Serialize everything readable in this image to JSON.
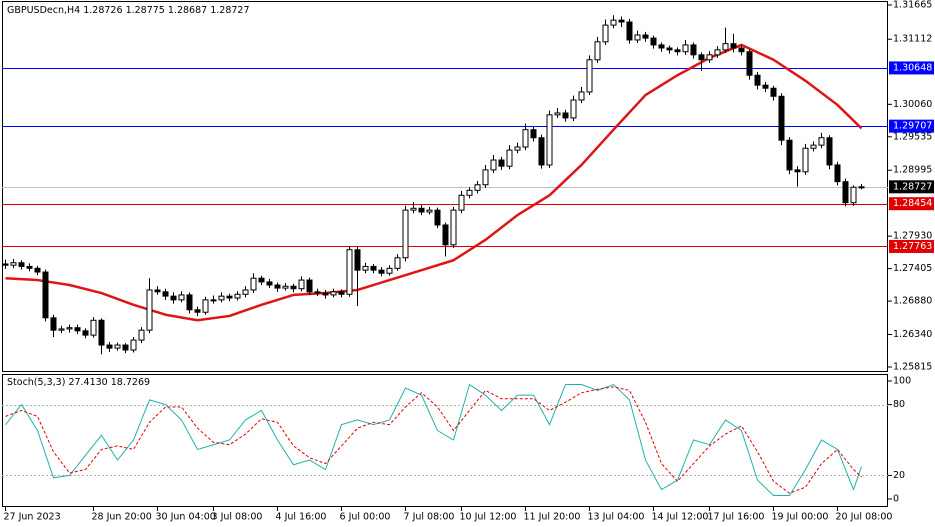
{
  "chart_data": [
    {
      "type": "candlestick",
      "title": "GBPUSDecn,H4",
      "categories": [
        "27 Jun 2023",
        null,
        null,
        null,
        null,
        null,
        null,
        null,
        null,
        null,
        null,
        "28 Jun 20:00",
        null,
        null,
        null,
        null,
        null,
        null,
        null,
        "30 Jun 04:00",
        null,
        null,
        null,
        null,
        null,
        null,
        "3 Jul 08:00",
        null,
        null,
        null,
        null,
        null,
        null,
        null,
        "4 Jul 16:00",
        null,
        null,
        null,
        null,
        null,
        null,
        null,
        "6 Jul 00:00",
        null,
        null,
        null,
        null,
        null,
        null,
        null,
        "7 Jul 08:00",
        null,
        null,
        null,
        null,
        null,
        null,
        "10 Jul 12:00",
        null,
        null,
        null,
        null,
        null,
        null,
        null,
        "11 Jul 20:00",
        null,
        null,
        null,
        null,
        null,
        null,
        null,
        "13 Jul 04:00",
        null,
        null,
        null,
        null,
        null,
        null,
        null,
        "14 Jul 12:00",
        null,
        null,
        null,
        null,
        null,
        null,
        "17 Jul 16:00",
        null,
        null,
        null,
        null,
        null,
        null,
        null,
        "19 Jul 00:00",
        null,
        null,
        null,
        null,
        null,
        null,
        null,
        "20 Jul 08:00",
        null,
        null,
        null
      ],
      "open": [
        1.2748,
        1.2746,
        1.275,
        1.2744,
        1.2741,
        1.2735,
        1.2661,
        1.2641,
        1.2643,
        1.2645,
        1.264,
        1.2633,
        1.2657,
        1.2617,
        1.2612,
        1.2617,
        1.2609,
        1.2625,
        1.2641,
        1.2706,
        1.2703,
        1.2696,
        1.269,
        1.2698,
        1.2674,
        1.267,
        1.269,
        1.269,
        1.2696,
        1.2693,
        1.2699,
        1.2706,
        1.2725,
        1.2719,
        1.2714,
        1.2709,
        1.2712,
        1.2708,
        1.2722,
        1.2703,
        1.2701,
        1.2698,
        1.2703,
        1.2699,
        1.2771,
        1.2738,
        1.2744,
        1.2738,
        1.2733,
        1.2741,
        1.2758,
        1.2835,
        1.2838,
        1.2832,
        1.2835,
        1.2811,
        1.2779,
        1.2835,
        1.2859,
        1.2867,
        1.2876,
        1.29,
        1.2916,
        1.2906,
        1.2932,
        1.2937,
        1.2965,
        1.2952,
        1.2908,
        1.2989,
        1.2992,
        1.2984,
        1.3013,
        1.3026,
        1.3078,
        1.3107,
        1.3134,
        1.3142,
        1.3139,
        1.311,
        1.3118,
        1.3113,
        1.3102,
        1.3097,
        1.3094,
        1.3091,
        1.3102,
        1.3086,
        1.3078,
        1.3086,
        1.3094,
        1.3104,
        1.3097,
        1.3091,
        1.3053,
        1.3037,
        1.3032,
        1.3019,
        1.2948,
        1.29,
        1.2897,
        1.2935,
        1.294,
        1.2952,
        1.2908,
        1.2881,
        1.2847,
        1.28726
      ],
      "high": [
        1.2755,
        1.2756,
        1.2754,
        1.2749,
        1.2745,
        1.2739,
        1.2666,
        1.2648,
        1.265,
        1.265,
        1.2644,
        1.2662,
        1.266,
        1.2622,
        1.2621,
        1.262,
        1.263,
        1.2646,
        1.2725,
        1.2712,
        1.2708,
        1.2702,
        1.2704,
        1.2702,
        1.2679,
        1.2695,
        1.2697,
        1.2702,
        1.27,
        1.2704,
        1.2712,
        1.2733,
        1.2729,
        1.2724,
        1.2718,
        1.2717,
        1.2716,
        1.2728,
        1.2726,
        1.2708,
        1.2706,
        1.2708,
        1.2707,
        1.2777,
        1.2776,
        1.275,
        1.2748,
        1.2743,
        1.2746,
        1.2764,
        1.2842,
        1.2848,
        1.2843,
        1.284,
        1.2839,
        1.2815,
        1.284,
        1.2866,
        1.2872,
        1.2882,
        1.2908,
        1.2924,
        1.2921,
        1.294,
        1.2944,
        1.2975,
        1.297,
        1.2957,
        1.2996,
        1.3,
        1.2997,
        1.302,
        1.3034,
        1.3085,
        1.3115,
        1.3143,
        1.315,
        1.3148,
        1.3144,
        1.3125,
        1.3123,
        1.3117,
        1.3106,
        1.3101,
        1.3098,
        1.311,
        1.3106,
        1.309,
        1.3092,
        1.31,
        1.313,
        1.312,
        1.3102,
        1.3095,
        1.3058,
        1.3042,
        1.3036,
        1.3024,
        1.2953,
        1.2906,
        1.2942,
        1.2946,
        1.296,
        1.2956,
        1.2913,
        1.2886,
        1.2875,
        1.28775
      ],
      "low": [
        1.274,
        1.2741,
        1.2739,
        1.2736,
        1.273,
        1.2655,
        1.263,
        1.2636,
        1.2637,
        1.2635,
        1.2628,
        1.2629,
        1.2602,
        1.2606,
        1.2608,
        1.2604,
        1.2605,
        1.262,
        1.2636,
        1.2698,
        1.269,
        1.2684,
        1.2686,
        1.2668,
        1.2664,
        1.2666,
        1.2684,
        1.2686,
        1.2688,
        1.2689,
        1.2694,
        1.2701,
        1.2714,
        1.2709,
        1.2703,
        1.2705,
        1.2702,
        1.2704,
        1.2698,
        1.2696,
        1.2692,
        1.2694,
        1.2694,
        1.2695,
        1.268,
        1.2733,
        1.2733,
        1.2728,
        1.2729,
        1.2737,
        1.2752,
        1.283,
        1.2827,
        1.2828,
        1.2806,
        1.276,
        1.2774,
        1.283,
        1.2854,
        1.2862,
        1.2871,
        1.2895,
        1.29,
        1.2901,
        1.2927,
        1.2932,
        1.2946,
        1.2902,
        1.2903,
        1.2984,
        1.2978,
        1.2979,
        1.3008,
        1.3021,
        1.3073,
        1.3102,
        1.3129,
        1.3131,
        1.3104,
        1.3105,
        1.3107,
        1.3096,
        1.3091,
        1.3088,
        1.3085,
        1.3086,
        1.308,
        1.306,
        1.3073,
        1.3081,
        1.3089,
        1.309,
        1.3085,
        1.3046,
        1.303,
        1.3026,
        1.3012,
        1.294,
        1.2893,
        1.2873,
        1.2892,
        1.293,
        1.2935,
        1.2901,
        1.2875,
        1.2841,
        1.2842,
        1.28687
      ],
      "close": [
        1.2746,
        1.275,
        1.2744,
        1.2741,
        1.2735,
        1.2661,
        1.2641,
        1.2643,
        1.2645,
        1.264,
        1.2633,
        1.2657,
        1.2617,
        1.2612,
        1.2617,
        1.2609,
        1.2625,
        1.2641,
        1.2706,
        1.2703,
        1.2696,
        1.269,
        1.2698,
        1.2674,
        1.267,
        1.269,
        1.269,
        1.2696,
        1.2693,
        1.2699,
        1.2706,
        1.2725,
        1.2719,
        1.2714,
        1.2709,
        1.2712,
        1.2708,
        1.2722,
        1.2703,
        1.2701,
        1.2698,
        1.2703,
        1.2699,
        1.2771,
        1.2738,
        1.2744,
        1.2738,
        1.2733,
        1.2741,
        1.2758,
        1.2835,
        1.2838,
        1.2832,
        1.2835,
        1.2811,
        1.2779,
        1.2835,
        1.2859,
        1.2867,
        1.2876,
        1.29,
        1.2916,
        1.2906,
        1.2932,
        1.2937,
        1.2965,
        1.2952,
        1.2908,
        1.2989,
        1.2992,
        1.2984,
        1.3013,
        1.3026,
        1.3078,
        1.3107,
        1.3134,
        1.3142,
        1.3139,
        1.311,
        1.3118,
        1.3113,
        1.3102,
        1.3097,
        1.3094,
        1.3091,
        1.3102,
        1.3086,
        1.3078,
        1.3086,
        1.3094,
        1.3104,
        1.3097,
        1.3091,
        1.3053,
        1.3037,
        1.3032,
        1.3019,
        1.2948,
        1.29,
        1.2897,
        1.2935,
        1.294,
        1.2952,
        1.2908,
        1.2881,
        1.2847,
        1.2872,
        1.28727
      ],
      "up_color": "#ffffff",
      "down_color": "#000000",
      "outline_color": "#000000",
      "series": [
        {
          "color": "#e01414",
          "x": [
            0,
            4,
            8,
            12,
            16,
            20,
            24,
            28,
            32,
            36,
            40,
            44,
            48,
            52,
            56,
            60,
            64,
            68,
            72,
            76,
            80,
            84,
            88,
            92,
            96,
            100,
            104,
            107
          ],
          "values": [
            1.2725,
            1.2722,
            1.2714,
            1.2701,
            1.2682,
            1.2666,
            1.2657,
            1.2664,
            1.2682,
            1.2698,
            1.2701,
            1.2706,
            1.2722,
            1.2738,
            1.2754,
            1.2787,
            1.2827,
            1.2859,
            1.2908,
            1.2965,
            1.3021,
            1.3053,
            1.3081,
            1.3102,
            1.3078,
            1.3044,
            1.3005,
            1.2967
          ]
        }
      ],
      "levels": [
        {
          "value": 1.30648,
          "color": "#0000ff"
        },
        {
          "value": 1.29707,
          "color": "#0000ff"
        },
        {
          "value": 1.28454,
          "color": "#e00000"
        },
        {
          "value": 1.27763,
          "color": "#e00000"
        }
      ],
      "bid_line_color": "#c0c0c0",
      "ylim": [
        1.25815,
        1.31665
      ],
      "yticks": [
        1.31665,
        1.31112,
        {
          "value": 1.3006,
          "label": "1.30060"
        },
        1.29535,
        1.28995,
        {
          "value": 1.2793,
          "label": "1.27930"
        },
        1.27405,
        {
          "value": 1.2688,
          "label": "1.26880"
        },
        {
          "value": 1.2634,
          "label": "1.26340"
        },
        1.25815
      ],
      "grid": false
    },
    {
      "type": "line",
      "title": "Stoch(5,3,3)",
      "series": [
        {
          "color": "#20b2aa",
          "x": [
            0,
            2,
            4,
            6,
            8,
            10,
            12,
            14,
            16,
            18,
            20,
            22,
            24,
            26,
            28,
            30,
            32,
            34,
            36,
            38,
            40,
            42,
            44,
            46,
            48,
            50,
            52,
            54,
            56,
            58,
            60,
            62,
            64,
            66,
            68,
            70,
            72,
            74,
            76,
            78,
            80,
            82,
            84,
            86,
            88,
            90,
            92,
            94,
            96,
            98,
            100,
            102,
            104,
            106,
            107
          ],
          "values": [
            63,
            80,
            58,
            18,
            20,
            37,
            54,
            33,
            50,
            84,
            80,
            67,
            42,
            46,
            50,
            67,
            75,
            50,
            29,
            33,
            25,
            63,
            67,
            63,
            67,
            94,
            88,
            58,
            50,
            97,
            88,
            75,
            88,
            88,
            63,
            97,
            97,
            92,
            97,
            84,
            33,
            8,
            16,
            50,
            46,
            67,
            58,
            16,
            3,
            3,
            25,
            50,
            42,
            8,
            27.413
          ],
          "value_labels": [
            null,
            null,
            null,
            null,
            null,
            null,
            null,
            null,
            null,
            null,
            null,
            null,
            null,
            null,
            null,
            null,
            null,
            null,
            null,
            null,
            null,
            null,
            null,
            null,
            null,
            null,
            null,
            null,
            null,
            null,
            null,
            null,
            null,
            null,
            null,
            null,
            null,
            null,
            null,
            null,
            null,
            null,
            null,
            null,
            null,
            null,
            null,
            null,
            null,
            null,
            null,
            null,
            null,
            null,
            "27.4130"
          ]
        },
        {
          "color": "#e00000",
          "style": "dashed",
          "x": [
            0,
            2,
            4,
            6,
            8,
            10,
            12,
            14,
            16,
            18,
            20,
            22,
            24,
            26,
            28,
            30,
            32,
            34,
            36,
            38,
            40,
            42,
            44,
            46,
            48,
            50,
            52,
            54,
            56,
            58,
            60,
            62,
            64,
            66,
            68,
            70,
            72,
            74,
            76,
            78,
            80,
            82,
            84,
            86,
            88,
            90,
            92,
            94,
            96,
            98,
            100,
            102,
            104,
            106,
            107
          ],
          "values": [
            70,
            75,
            70,
            40,
            22,
            25,
            42,
            45,
            42,
            65,
            78,
            78,
            60,
            48,
            46,
            55,
            68,
            65,
            45,
            35,
            30,
            45,
            60,
            65,
            63,
            78,
            90,
            78,
            58,
            75,
            92,
            85,
            85,
            85,
            75,
            82,
            90,
            93,
            95,
            92,
            65,
            30,
            15,
            30,
            45,
            55,
            62,
            40,
            15,
            5,
            10,
            30,
            42,
            25,
            18.7269
          ],
          "value_labels": [
            null,
            null,
            null,
            null,
            null,
            null,
            null,
            null,
            null,
            null,
            null,
            null,
            null,
            null,
            null,
            null,
            null,
            null,
            null,
            null,
            null,
            null,
            null,
            null,
            null,
            null,
            null,
            null,
            null,
            null,
            null,
            null,
            null,
            null,
            null,
            null,
            null,
            null,
            null,
            null,
            null,
            null,
            null,
            null,
            null,
            null,
            null,
            null,
            null,
            null,
            null,
            null,
            null,
            null,
            "18.7269"
          ]
        }
      ],
      "levels": [
        80,
        20
      ],
      "level_color": "#b0b0b0",
      "ylim": [
        0,
        100
      ],
      "yticks": [
        100,
        80,
        20,
        0
      ]
    }
  ]
}
